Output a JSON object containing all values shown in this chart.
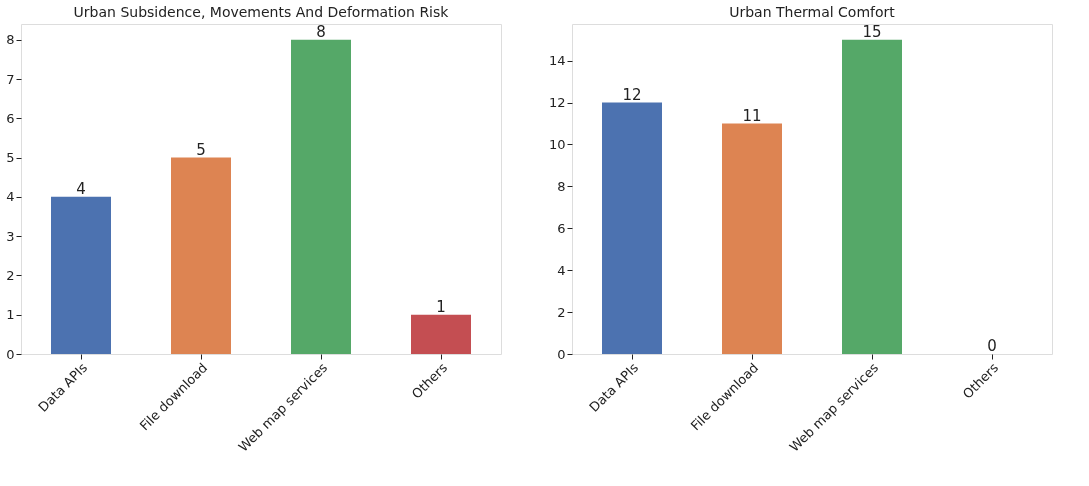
{
  "chart_data": [
    {
      "type": "bar",
      "title": "Urban Subsidence, Movements And Deformation Risk",
      "categories": [
        "Data APIs",
        "File download",
        "Web map services",
        "Others"
      ],
      "values": [
        4,
        5,
        8,
        1
      ],
      "colors": [
        "#4c72b0",
        "#dd8452",
        "#55a868",
        "#c44e52"
      ],
      "ylim": [
        0,
        8.4
      ],
      "yticks": [
        0,
        1,
        2,
        3,
        4,
        5,
        6,
        7,
        8
      ],
      "data_labels": true,
      "grid": false,
      "legend": false
    },
    {
      "type": "bar",
      "title": "Urban Thermal Comfort",
      "categories": [
        "Data APIs",
        "File download",
        "Web map services",
        "Others"
      ],
      "values": [
        12,
        11,
        15,
        0
      ],
      "colors": [
        "#4c72b0",
        "#dd8452",
        "#55a868",
        "#c44e52"
      ],
      "ylim": [
        0,
        15.75
      ],
      "yticks": [
        0,
        2,
        4,
        6,
        8,
        10,
        12,
        14
      ],
      "data_labels": true,
      "grid": false,
      "legend": false
    }
  ]
}
